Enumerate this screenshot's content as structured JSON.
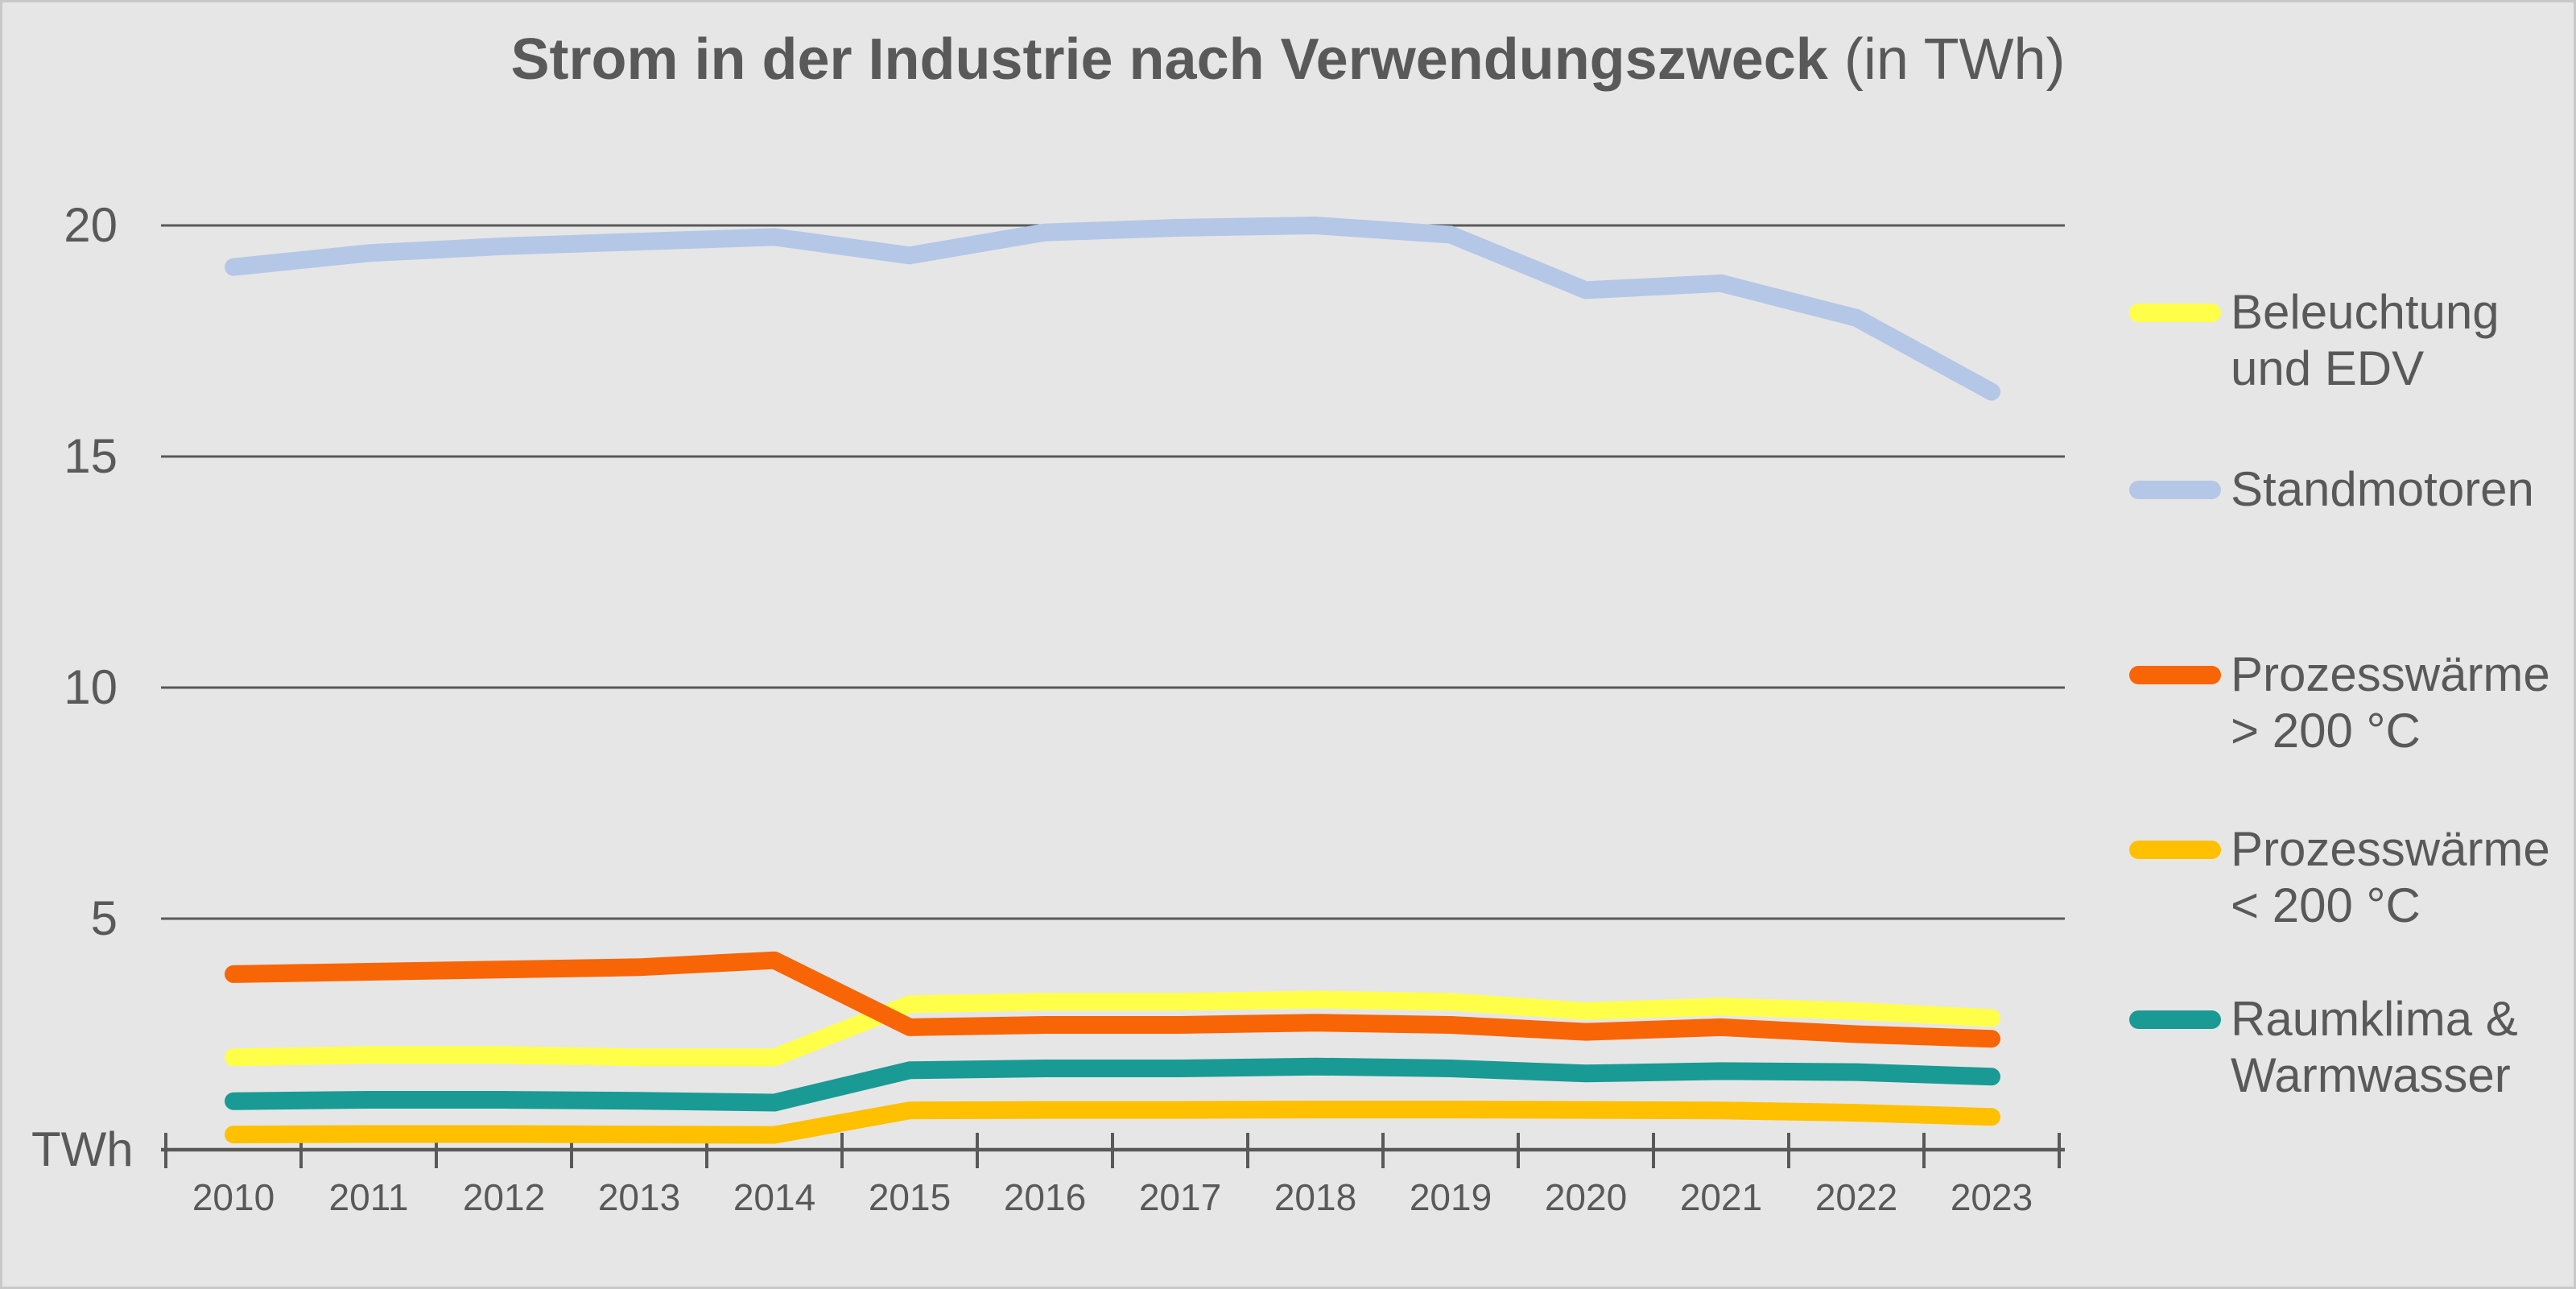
{
  "title": {
    "main": "Strom in der Industrie nach Verwendungszweck",
    "suffix": " (in TWh)"
  },
  "y_axis": {
    "unit_label": "TWh",
    "tick_labels": [
      "20",
      "15",
      "10",
      "5"
    ],
    "tick_values": [
      20,
      15,
      10,
      5
    ]
  },
  "x_axis": {
    "years": [
      "2010",
      "2011",
      "2012",
      "2013",
      "2014",
      "2015",
      "2016",
      "2017",
      "2018",
      "2019",
      "2020",
      "2021",
      "2022",
      "2023"
    ]
  },
  "legend": {
    "items": [
      {
        "line1": "Beleuchtung",
        "line2": "und EDV",
        "color": "#FFFF4A"
      },
      {
        "line1": "Standmotoren",
        "line2": "",
        "color": "#B4C7E7"
      },
      {
        "line1": "Prozesswärme",
        "line2": "> 200 °C",
        "color": "#F86506"
      },
      {
        "line1": "Prozesswärme",
        "line2": "< 200 °C",
        "color": "#FFC000"
      },
      {
        "line1": "Raumklima &",
        "line2": "Warmwasser",
        "color": "#1A9A94"
      }
    ]
  },
  "colors": {
    "background": "#E7E6E6",
    "text": "#595959",
    "grid": "#595959",
    "frame_border": "#C8C8C8"
  },
  "chart_data": {
    "type": "line",
    "title": "Strom in der Industrie nach Verwendungszweck (in TWh)",
    "x": [
      2010,
      2011,
      2012,
      2013,
      2014,
      2015,
      2016,
      2017,
      2018,
      2019,
      2020,
      2021,
      2022,
      2023
    ],
    "xlabel": "",
    "ylabel": "TWh",
    "ylim": [
      0,
      21
    ],
    "gridlines": [
      5,
      10,
      15,
      20
    ],
    "grid": true,
    "legend_position": "right",
    "series": [
      {
        "name": "Beleuchtung und EDV",
        "color": "#FFFF4A",
        "values": [
          2.0,
          2.05,
          2.05,
          2.0,
          2.0,
          3.15,
          3.2,
          3.2,
          3.25,
          3.2,
          3.0,
          3.1,
          3.0,
          2.85
        ]
      },
      {
        "name": "Standmotoren",
        "color": "#B4C7E7",
        "values": [
          19.1,
          19.4,
          19.55,
          19.65,
          19.75,
          19.35,
          19.85,
          19.95,
          20.0,
          19.8,
          18.6,
          18.75,
          18.0,
          16.4
        ]
      },
      {
        "name": "Prozesswärme > 200 °C",
        "color": "#F86506",
        "values": [
          3.8,
          3.85,
          3.9,
          3.95,
          4.1,
          2.65,
          2.7,
          2.7,
          2.75,
          2.7,
          2.55,
          2.65,
          2.5,
          2.4
        ]
      },
      {
        "name": "Prozesswärme < 200 °C",
        "color": "#FFC000",
        "values": [
          0.33,
          0.34,
          0.34,
          0.33,
          0.32,
          0.85,
          0.86,
          0.86,
          0.87,
          0.87,
          0.86,
          0.85,
          0.8,
          0.71
        ]
      },
      {
        "name": "Raumklima & Warmwasser",
        "color": "#1A9A94",
        "values": [
          1.05,
          1.08,
          1.08,
          1.06,
          1.02,
          1.72,
          1.76,
          1.76,
          1.8,
          1.76,
          1.65,
          1.7,
          1.68,
          1.58
        ]
      }
    ]
  }
}
